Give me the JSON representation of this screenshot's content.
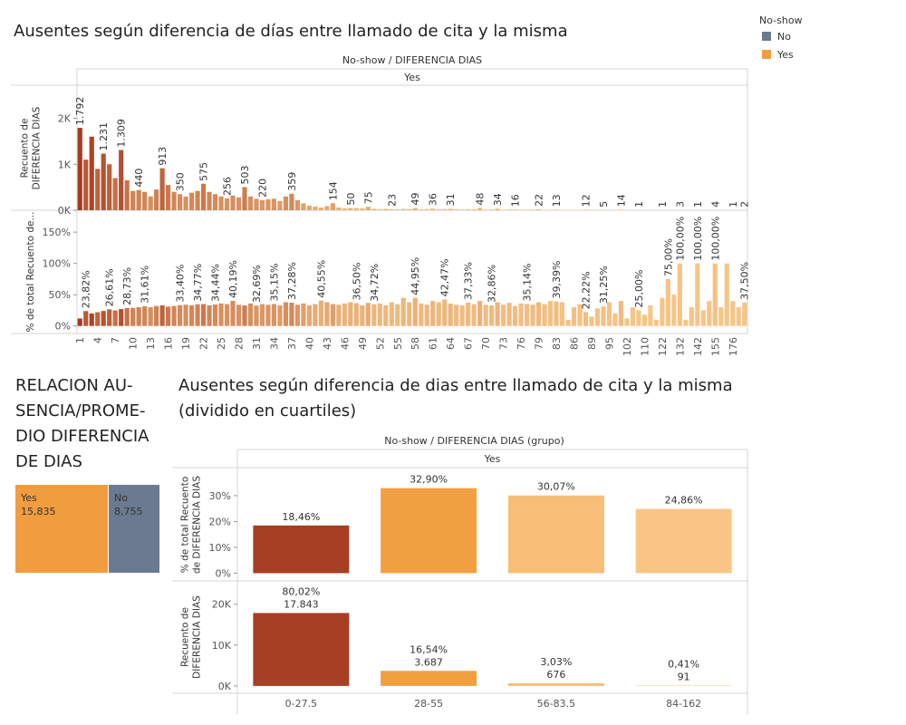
{
  "legend": {
    "title": "No-show",
    "items": [
      {
        "name": "No",
        "color": "#6b7a90"
      },
      {
        "name": "Yes",
        "color": "#f09d3f"
      }
    ]
  },
  "chart_data": [
    {
      "type": "bar",
      "title": "Ausentes según diferencia de días entre llamado de cita y la misma",
      "header": "No-show  /  DIFERENCIA DIAS",
      "facet": "Yes",
      "color_range": [
        "#f8c98a",
        "#a63b1f"
      ],
      "categories": [
        "1",
        null,
        null,
        "4",
        null,
        null,
        "7",
        null,
        null,
        "10",
        null,
        null,
        "13",
        null,
        null,
        "16",
        null,
        null,
        "19",
        null,
        null,
        "22",
        null,
        null,
        "25",
        null,
        null,
        "28",
        null,
        null,
        "31",
        null,
        null,
        "34",
        null,
        null,
        "37",
        null,
        null,
        "40",
        null,
        null,
        "43",
        null,
        null,
        "46",
        null,
        null,
        "49",
        null,
        null,
        "52",
        null,
        null,
        "55",
        null,
        null,
        "58",
        null,
        null,
        "61",
        null,
        null,
        "64",
        null,
        null,
        "67",
        null,
        null,
        "70",
        null,
        null,
        "73",
        null,
        null,
        "76",
        null,
        null,
        "79",
        null,
        null,
        "83",
        null,
        null,
        "86",
        null,
        null,
        "89",
        null,
        null,
        "95",
        null,
        null,
        "102",
        null,
        null,
        "110",
        null,
        null,
        "122",
        null,
        null,
        "132",
        null,
        null,
        "142",
        null,
        null,
        "155",
        null,
        null,
        "176",
        null,
        null
      ],
      "panels": [
        {
          "ylabel": [
            "Recuento de",
            "DIFERENCIA DIAS"
          ],
          "ylim": [
            0,
            2700
          ],
          "yticks": [
            {
              "value": 0,
              "label": "0K"
            },
            {
              "value": 1000,
              "label": "1K"
            },
            {
              "value": 2000,
              "label": "2K"
            }
          ],
          "values": [
            1792,
            1100,
            1600,
            900,
            1231,
            1000,
            700,
            1309,
            650,
            420,
            440,
            400,
            300,
            450,
            913,
            550,
            400,
            350,
            300,
            380,
            420,
            575,
            400,
            350,
            300,
            256,
            320,
            280,
            503,
            300,
            250,
            220,
            240,
            250,
            200,
            300,
            359,
            220,
            150,
            100,
            80,
            60,
            90,
            154,
            60,
            40,
            50,
            45,
            40,
            75,
            30,
            25,
            30,
            23,
            20,
            30,
            25,
            49,
            20,
            25,
            36,
            20,
            25,
            31,
            20,
            15,
            20,
            18,
            48,
            15,
            20,
            34,
            12,
            15,
            16,
            10,
            12,
            14,
            22,
            10,
            8,
            13,
            6,
            5,
            8,
            4,
            12,
            3,
            4,
            5,
            2,
            3,
            14,
            2,
            1,
            1,
            2,
            1,
            1,
            1,
            2,
            1,
            3,
            1,
            2,
            1,
            1,
            2,
            4,
            1,
            1,
            1,
            1,
            2
          ],
          "value_labels": [
            "1.792",
            null,
            null,
            null,
            "1.231",
            null,
            null,
            "1.309",
            null,
            null,
            "440",
            null,
            null,
            null,
            "913",
            null,
            null,
            "350",
            null,
            null,
            null,
            "575",
            null,
            null,
            null,
            "256",
            null,
            null,
            "503",
            null,
            null,
            "220",
            null,
            null,
            null,
            null,
            "359",
            null,
            null,
            null,
            null,
            null,
            null,
            "154",
            null,
            null,
            "50",
            null,
            null,
            "75",
            null,
            null,
            null,
            "23",
            null,
            null,
            null,
            "49",
            null,
            null,
            "36",
            null,
            null,
            "31",
            null,
            null,
            null,
            null,
            "48",
            null,
            null,
            "34",
            null,
            null,
            "16",
            null,
            null,
            null,
            "22",
            null,
            null,
            "13",
            null,
            null,
            null,
            null,
            "12",
            null,
            null,
            "5",
            null,
            null,
            "14",
            null,
            null,
            "1",
            null,
            null,
            null,
            "1",
            null,
            null,
            "3",
            null,
            null,
            "1",
            null,
            null,
            "4",
            null,
            null,
            "1",
            null,
            "2"
          ]
        },
        {
          "ylabel": [
            "% de total Recuento de..."
          ],
          "ylim": [
            -12,
            185
          ],
          "yticks": [
            {
              "value": 0,
              "label": "0%"
            },
            {
              "value": 50,
              "label": "50%"
            },
            {
              "value": 100,
              "label": "100%"
            },
            {
              "value": 150,
              "label": "150%"
            }
          ],
          "values": [
            12,
            23.82,
            20,
            22,
            24,
            26.61,
            25,
            27,
            28.73,
            29,
            30,
            31.61,
            30,
            32,
            33,
            31,
            32,
            33.4,
            34,
            33,
            34.77,
            35,
            33,
            34.44,
            36,
            35,
            40.19,
            34,
            33,
            36,
            32.69,
            35,
            34,
            35.15,
            33,
            38,
            37.28,
            34,
            36,
            33,
            35,
            40.55,
            38,
            35,
            34,
            36,
            38,
            36.5,
            33,
            37,
            34.72,
            36,
            33,
            38,
            35,
            45,
            38,
            44.95,
            36,
            34,
            40,
            38,
            42.47,
            36,
            34,
            33,
            37.33,
            35,
            40,
            34,
            32.86,
            38,
            34,
            37,
            32,
            36,
            35.14,
            34,
            38,
            35,
            40,
            39.39,
            38,
            10,
            30,
            35,
            22.22,
            15,
            28,
            31.25,
            38,
            20,
            40,
            12,
            30,
            25,
            18,
            33,
            10,
            45,
            75,
            50,
            100,
            10,
            30,
            100,
            25,
            40,
            100,
            30,
            100,
            40,
            30,
            37.5
          ],
          "value_labels": [
            null,
            "23,82%",
            null,
            null,
            null,
            "26,61%",
            null,
            null,
            "28,73%",
            null,
            null,
            "31,61%",
            null,
            null,
            null,
            null,
            null,
            "33,40%",
            null,
            null,
            "34,77%",
            null,
            null,
            "34,44%",
            null,
            null,
            "40,19%",
            null,
            null,
            null,
            "32,69%",
            null,
            null,
            "35,15%",
            null,
            null,
            "37,28%",
            null,
            null,
            null,
            null,
            "40,55%",
            null,
            null,
            null,
            null,
            null,
            "36,50%",
            null,
            null,
            "34,72%",
            null,
            null,
            null,
            null,
            null,
            null,
            "44,95%",
            null,
            null,
            null,
            null,
            "42,47%",
            null,
            null,
            null,
            "37,33%",
            null,
            null,
            null,
            "32,86%",
            null,
            null,
            null,
            null,
            null,
            "35,14%",
            null,
            null,
            null,
            null,
            "39,39%",
            null,
            null,
            null,
            null,
            "22,22%",
            null,
            null,
            "31,25%",
            null,
            null,
            null,
            null,
            null,
            "25,00%",
            null,
            null,
            null,
            null,
            "75,00%",
            null,
            "100,00%",
            null,
            null,
            "100,00%",
            null,
            null,
            "100,00%",
            null,
            null,
            null,
            null,
            "37,50%"
          ]
        }
      ]
    },
    {
      "type": "treemap",
      "title_lines": [
        "RELACION AU-",
        "SENCIA/PROME-",
        "DIO DIFERENCIA",
        "DE DIAS"
      ],
      "categories": [
        "Yes",
        "No"
      ],
      "values": [
        15835,
        8755
      ],
      "value_labels": [
        "15,835",
        "8,755"
      ],
      "colors": [
        "#f09d3f",
        "#6b7a90"
      ]
    },
    {
      "type": "bar",
      "title_lines": [
        "Ausentes según diferencia de dias entre llamado de cita y la misma",
        "(dividido en cuartiles)"
      ],
      "header": "No-show  /  DIFERENCIA DIAS (grupo)",
      "facet": "Yes",
      "categories": [
        "0-27.5",
        "28-55",
        "56-83.5",
        "84-162"
      ],
      "colors": [
        "#a63f23",
        "#f1a041",
        "#f8bd76",
        "#f9c587"
      ],
      "panels": [
        {
          "ylabel": [
            "% de total Recuento",
            "de DIFERENCIA DIAS"
          ],
          "ylim": [
            -3,
            40.5
          ],
          "yticks": [
            {
              "value": 0,
              "label": "0%"
            },
            {
              "value": 10,
              "label": "10%"
            },
            {
              "value": 20,
              "label": "20%"
            },
            {
              "value": 30,
              "label": "30%"
            }
          ],
          "values": [
            18.46,
            32.9,
            30.07,
            24.86
          ],
          "value_labels": [
            "18,46%",
            "32,90%",
            "30,07%",
            "24,86%"
          ]
        },
        {
          "ylabel": [
            "Recuento de",
            "DIFERENCIA DIAS"
          ],
          "ylim": [
            -1800,
            25700
          ],
          "yticks": [
            {
              "value": 0,
              "label": "0K"
            },
            {
              "value": 10000,
              "label": "10K"
            },
            {
              "value": 20000,
              "label": "20K"
            }
          ],
          "values": [
            17843,
            3687,
            676,
            91
          ],
          "value_labels": [
            "17.843",
            "3.687",
            "676",
            "91"
          ],
          "percent_of_total": [
            80.02,
            16.54,
            3.03,
            0.41
          ],
          "percent_of_total_labels": [
            "80,02%",
            "16,54%",
            "3,03%",
            "0,41%"
          ]
        }
      ]
    }
  ]
}
